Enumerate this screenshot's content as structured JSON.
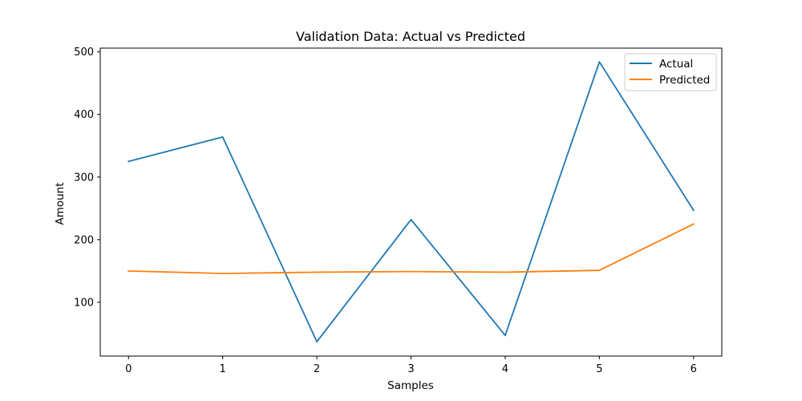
{
  "chart_data": {
    "type": "line",
    "title": "Validation Data: Actual vs Predicted",
    "xlabel": "Samples",
    "ylabel": "Amount",
    "x": [
      0,
      1,
      2,
      3,
      4,
      5,
      6
    ],
    "xlim": [
      -0.3,
      6.3
    ],
    "ylim": [
      14,
      506
    ],
    "xticks": [
      0,
      1,
      2,
      3,
      4,
      5,
      6
    ],
    "yticks": [
      100,
      200,
      300,
      400,
      500
    ],
    "grid": false,
    "legend_position": "top-right",
    "series": [
      {
        "name": "Actual",
        "color": "#1f77b4",
        "values": [
          325,
          364,
          37,
          232,
          47,
          484,
          247
        ]
      },
      {
        "name": "Predicted",
        "color": "#ff7f0e",
        "values": [
          150,
          146,
          148,
          149,
          148,
          151,
          225
        ]
      }
    ]
  }
}
